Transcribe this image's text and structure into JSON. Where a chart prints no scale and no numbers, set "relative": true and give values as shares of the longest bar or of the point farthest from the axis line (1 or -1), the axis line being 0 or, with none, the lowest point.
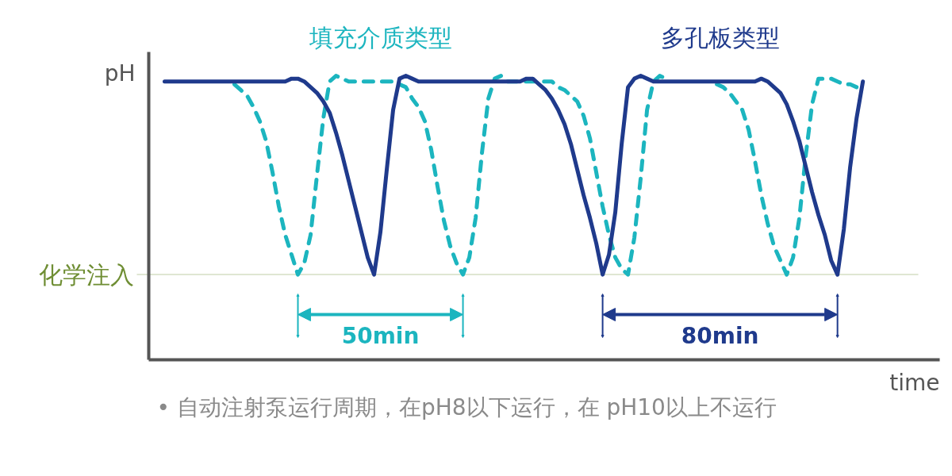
{
  "chart_data": {
    "type": "line",
    "relative": true,
    "xlabel": "time",
    "ylabel": "pH",
    "categories": [
      null,
      null,
      null,
      null,
      null,
      null,
      null,
      null,
      null,
      null,
      null,
      null,
      null,
      null,
      null,
      null,
      null,
      null,
      null,
      null,
      null,
      null,
      null,
      null,
      null,
      null,
      null,
      null,
      null,
      null,
      null,
      null,
      null,
      null,
      null,
      null,
      null,
      null,
      null,
      null,
      null,
      null,
      null,
      null,
      null,
      null,
      null,
      null,
      null,
      null,
      null,
      null,
      null,
      null,
      null,
      null,
      null,
      null,
      null,
      null,
      null,
      null,
      null,
      null,
      null,
      null,
      null,
      null,
      null,
      null,
      null,
      null,
      null,
      null,
      null,
      null,
      null,
      null,
      null,
      null,
      null,
      null,
      null,
      null,
      null,
      null,
      null,
      null,
      null,
      null,
      null,
      null,
      null,
      null,
      null,
      null,
      null,
      null,
      null,
      null,
      null,
      null,
      null,
      null,
      null,
      null,
      null,
      null,
      null,
      null,
      null
    ],
    "series": [
      {
        "name": "填充介质类型",
        "color": "#1cb5bf",
        "line_style": "dashed",
        "values": [
          null,
          null,
          null,
          null,
          null,
          null,
          null,
          null,
          null,
          null,
          null,
          0.97,
          0.95,
          0.93,
          0.89,
          0.84,
          0.77,
          0.66,
          0.54,
          0.44,
          0.37,
          0.3,
          0.34,
          0.44,
          0.65,
          0.85,
          0.98,
          1.0,
          0.99,
          0.98,
          0.98,
          0.98,
          0.98,
          0.98,
          0.98,
          0.98,
          0.98,
          0.97,
          0.96,
          0.92,
          0.89,
          0.84,
          0.74,
          0.61,
          0.49,
          0.4,
          0.34,
          0.3,
          0.36,
          0.5,
          0.73,
          0.92,
          0.99,
          1.0,
          0.98,
          0.98,
          0.98,
          0.98,
          0.98,
          0.98,
          0.98,
          0.98,
          0.96,
          0.95,
          0.93,
          0.91,
          0.86,
          0.78,
          0.66,
          0.54,
          0.44,
          0.36,
          0.32,
          0.3,
          0.43,
          0.64,
          0.88,
          0.98,
          1.0,
          0.99,
          null,
          null,
          null,
          null,
          null,
          null,
          null,
          0.97,
          0.96,
          0.94,
          0.91,
          0.88,
          0.81,
          0.7,
          0.58,
          0.48,
          0.4,
          0.35,
          0.3,
          0.36,
          0.5,
          0.72,
          0.9,
          0.99,
          0.99,
          0.99,
          0.98,
          0.97,
          0.97,
          0.96,
          null
        ]
      },
      {
        "name": "多孔板类型",
        "color": "#1f3a8c",
        "line_style": "solid",
        "values": [
          0.98,
          0.98,
          0.98,
          0.98,
          0.98,
          0.98,
          0.98,
          0.98,
          0.98,
          0.98,
          0.98,
          0.98,
          0.98,
          0.98,
          0.98,
          0.98,
          0.98,
          0.98,
          0.98,
          0.98,
          0.99,
          0.99,
          0.98,
          0.96,
          0.94,
          0.91,
          0.87,
          0.8,
          0.72,
          0.63,
          0.54,
          0.45,
          0.36,
          0.3,
          0.45,
          0.67,
          0.88,
          0.99,
          1.0,
          0.99,
          0.98,
          0.98,
          0.98,
          0.98,
          0.98,
          0.98,
          0.98,
          0.98,
          0.98,
          0.98,
          0.98,
          0.98,
          0.98,
          0.98,
          0.98,
          0.98,
          0.98,
          0.99,
          0.99,
          0.97,
          0.95,
          0.92,
          0.88,
          0.83,
          0.76,
          0.67,
          0.58,
          0.5,
          0.41,
          0.3,
          0.37,
          0.52,
          0.76,
          0.96,
          0.99,
          1.0,
          0.99,
          0.98,
          0.98,
          0.98,
          0.98,
          0.98,
          0.98,
          0.98,
          0.98,
          0.98,
          0.98,
          0.98,
          0.98,
          0.98,
          0.98,
          0.98,
          0.98,
          0.98,
          0.99,
          0.98,
          0.96,
          0.94,
          0.9,
          0.84,
          0.77,
          0.68,
          0.59,
          0.51,
          0.44,
          0.35,
          0.3,
          0.46,
          0.68,
          0.85,
          0.98
        ]
      }
    ],
    "ref_lines": [
      {
        "axis": "y",
        "value": 0.3,
        "label": "化学注入",
        "color": "#6f8e34"
      }
    ],
    "annotations": [
      "50min",
      "80min",
      "• 自动注射泵运行周期，在pH8以下运行，在 pH10以上不运行"
    ]
  }
}
